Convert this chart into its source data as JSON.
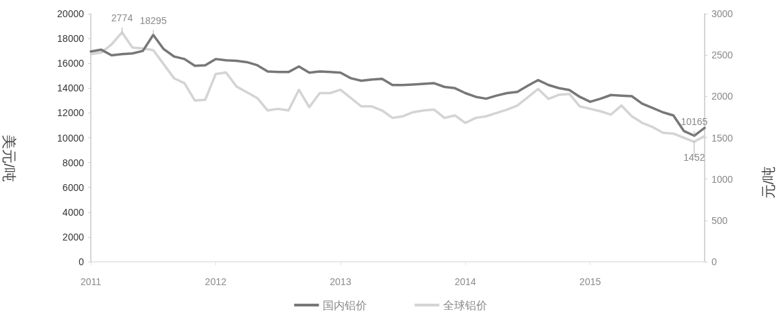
{
  "chart_data": {
    "type": "line",
    "ylabel": "美元/吨",
    "y2label": "元/吨",
    "categories": [
      "2011",
      null,
      null,
      null,
      null,
      null,
      null,
      null,
      null,
      null,
      null,
      null,
      "2012",
      null,
      null,
      null,
      null,
      null,
      null,
      null,
      null,
      null,
      null,
      null,
      "2013",
      null,
      null,
      null,
      null,
      null,
      null,
      null,
      null,
      null,
      null,
      null,
      "2014",
      null,
      null,
      null,
      null,
      null,
      null,
      null,
      null,
      null,
      null,
      null,
      "2015",
      null,
      null,
      null,
      null,
      null,
      null,
      null,
      null,
      null,
      null,
      null
    ],
    "series": [
      {
        "name": "国内铝价",
        "color": "#777777",
        "values": [
          16950,
          17100,
          16650,
          16750,
          16800,
          17000,
          18295,
          17150,
          16550,
          16350,
          15800,
          15850,
          16350,
          16250,
          16200,
          16100,
          15850,
          15350,
          15300,
          15300,
          15750,
          15250,
          15350,
          15300,
          15250,
          14800,
          14600,
          14700,
          14750,
          14250,
          14250,
          14300,
          14350,
          14400,
          14100,
          14000,
          13600,
          13300,
          13150,
          13400,
          13600,
          13700,
          14200,
          14650,
          14250,
          14000,
          13850,
          13300,
          12900,
          13150,
          13450,
          13400,
          13350,
          12750,
          12400,
          12050,
          11800,
          10550,
          10165,
          10800
        ],
        "value_labels": [
          null,
          null,
          null,
          null,
          null,
          null,
          "18295",
          null,
          null,
          null,
          null,
          null,
          null,
          null,
          null,
          null,
          null,
          null,
          null,
          null,
          null,
          null,
          null,
          null,
          null,
          null,
          null,
          null,
          null,
          null,
          null,
          null,
          null,
          null,
          null,
          null,
          null,
          null,
          null,
          null,
          null,
          null,
          null,
          null,
          null,
          null,
          null,
          null,
          null,
          null,
          null,
          null,
          null,
          null,
          null,
          null,
          null,
          null,
          "10165",
          null
        ]
      },
      {
        "name": "全球铝价",
        "color": "#d4d4d4",
        "axis": "y2",
        "values": [
          2510,
          2530,
          2630,
          2774,
          2590,
          2580,
          2560,
          2390,
          2220,
          2160,
          1950,
          1960,
          2270,
          2290,
          2120,
          2050,
          1980,
          1830,
          1850,
          1830,
          2080,
          1870,
          2040,
          2040,
          2080,
          1980,
          1880,
          1880,
          1830,
          1740,
          1760,
          1810,
          1830,
          1840,
          1740,
          1770,
          1680,
          1740,
          1760,
          1800,
          1840,
          1890,
          1990,
          2090,
          1970,
          2020,
          2030,
          1880,
          1850,
          1820,
          1780,
          1890,
          1760,
          1680,
          1630,
          1560,
          1550,
          1500,
          1452,
          1520
        ],
        "value_labels": [
          null,
          null,
          null,
          "2774",
          null,
          null,
          null,
          null,
          null,
          null,
          null,
          null,
          null,
          null,
          null,
          null,
          null,
          null,
          null,
          null,
          null,
          null,
          null,
          null,
          null,
          null,
          null,
          null,
          null,
          null,
          null,
          null,
          null,
          null,
          null,
          null,
          null,
          null,
          null,
          null,
          null,
          null,
          null,
          null,
          null,
          null,
          null,
          null,
          null,
          null,
          null,
          null,
          null,
          null,
          null,
          null,
          null,
          null,
          "1452",
          null
        ]
      }
    ],
    "ylim": [
      0,
      20000
    ],
    "yticks": [
      0,
      2000,
      4000,
      6000,
      8000,
      10000,
      12000,
      14000,
      16000,
      18000,
      20000
    ],
    "y2lim": [
      0,
      3000
    ],
    "y2ticks": [
      0,
      500,
      1000,
      1500,
      2000,
      2500,
      3000
    ],
    "legend": "bottom",
    "grid": false,
    "marker": "none",
    "line_style": "solid"
  }
}
